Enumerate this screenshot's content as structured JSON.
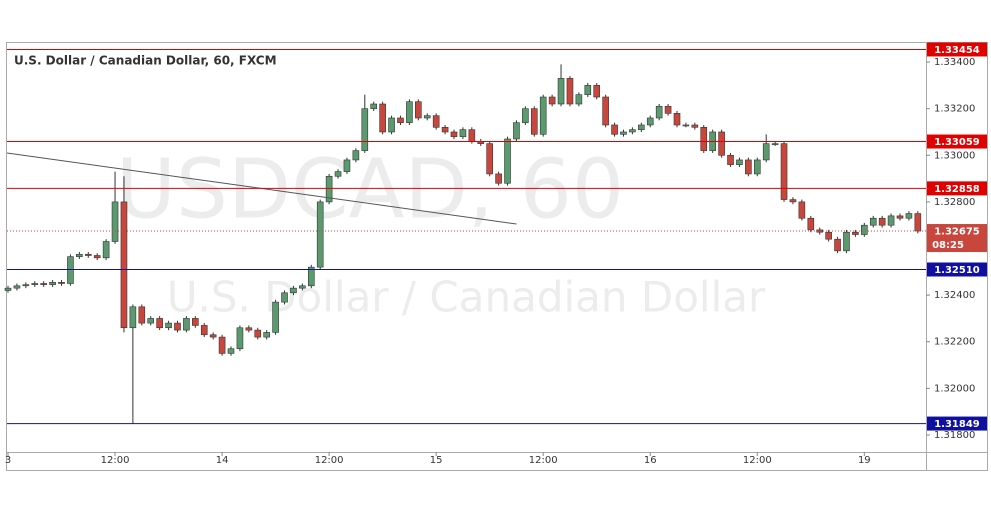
{
  "chart_data": {
    "type": "candlestick",
    "title": "U.S. Dollar / Canadian Dollar, 60, FXCM",
    "watermark": "USDCAD, 60",
    "watermark_subtitle": "U.S. Dollar / Canadian Dollar",
    "up_color": "#5b9a6f",
    "down_color": "#c9463d",
    "categories": [
      "3",
      null,
      null,
      null,
      null,
      null,
      null,
      null,
      null,
      null,
      null,
      null,
      "12:00",
      null,
      null,
      null,
      null,
      null,
      null,
      null,
      null,
      null,
      null,
      null,
      "14",
      null,
      null,
      null,
      null,
      null,
      null,
      null,
      null,
      null,
      null,
      null,
      "12:00",
      null,
      null,
      null,
      null,
      null,
      null,
      null,
      null,
      null,
      null,
      null,
      "15",
      null,
      null,
      null,
      null,
      null,
      null,
      null,
      null,
      null,
      null,
      null,
      "12:00",
      null,
      null,
      null,
      null,
      null,
      null,
      null,
      null,
      null,
      null,
      null,
      "16",
      null,
      null,
      null,
      null,
      null,
      null,
      null,
      null,
      null,
      null,
      null,
      "12:00",
      null,
      null,
      null,
      null,
      null,
      null,
      null,
      null,
      null,
      null,
      null,
      "19",
      null,
      null,
      null,
      null,
      null,
      null
    ],
    "open": [
      1.3242,
      1.3243,
      1.3244,
      1.32445,
      1.3245,
      1.32445,
      1.32455,
      1.3245,
      1.32565,
      1.32575,
      1.3257,
      1.3256,
      1.3263,
      1.328,
      1.3226,
      1.3235,
      1.3228,
      1.323,
      1.3226,
      1.3228,
      1.3225,
      1.323,
      1.3227,
      1.3223,
      1.3222,
      1.3215,
      1.3217,
      1.3226,
      1.3225,
      1.3222,
      1.3224,
      1.3237,
      1.3241,
      1.3243,
      1.3244,
      1.3252,
      1.328,
      1.3291,
      1.3293,
      1.3298,
      1.3302,
      1.332,
      1.3322,
      1.331,
      1.3316,
      1.3314,
      1.3323,
      1.3316,
      1.3317,
      1.3312,
      1.331,
      1.3308,
      1.3311,
      1.3306,
      1.3305,
      1.3292,
      1.3288,
      1.3307,
      1.3314,
      1.332,
      1.3309,
      1.3325,
      1.3322,
      1.3333,
      1.3322,
      1.3326,
      1.333,
      1.3325,
      1.3313,
      1.3309,
      1.331,
      1.3311,
      1.3313,
      1.3316,
      1.3321,
      1.3318,
      1.3313,
      1.3313,
      1.3312,
      1.3302,
      1.331,
      1.33,
      1.3296,
      1.3298,
      1.3292,
      1.3298,
      1.3305,
      1.3305,
      1.3281,
      1.328,
      1.3273,
      1.3268,
      1.3267,
      1.3264,
      1.3259,
      1.3267,
      1.3266,
      1.327,
      1.3273,
      1.327,
      1.3274,
      1.3273,
      1.3275
    ],
    "high": [
      1.3244,
      1.3245,
      1.32455,
      1.3246,
      1.3246,
      1.32465,
      1.32465,
      1.32575,
      1.32585,
      1.32585,
      1.3258,
      1.3264,
      1.3293,
      1.3291,
      1.3236,
      1.3236,
      1.3231,
      1.3231,
      1.3229,
      1.3229,
      1.3231,
      1.3231,
      1.3228,
      1.3224,
      1.3223,
      1.3218,
      1.3227,
      1.3227,
      1.3226,
      1.3225,
      1.3238,
      1.3242,
      1.3244,
      1.3245,
      1.3253,
      1.3281,
      1.3292,
      1.3294,
      1.3299,
      1.3303,
      1.3326,
      1.3323,
      1.3323,
      1.3317,
      1.3317,
      1.3324,
      1.3324,
      1.3318,
      1.3318,
      1.3313,
      1.3311,
      1.3312,
      1.3312,
      1.3307,
      1.3306,
      1.3293,
      1.3308,
      1.3315,
      1.3321,
      1.3321,
      1.3326,
      1.3326,
      1.3339,
      1.3334,
      1.3327,
      1.3331,
      1.3331,
      1.3326,
      1.3314,
      1.3311,
      1.3312,
      1.3314,
      1.3317,
      1.3322,
      1.3322,
      1.3319,
      1.3314,
      1.3314,
      1.3313,
      1.3311,
      1.3311,
      1.3301,
      1.3299,
      1.3299,
      1.3299,
      1.3309,
      1.3306,
      1.3306,
      1.3282,
      1.3281,
      1.3274,
      1.3269,
      1.3268,
      1.3265,
      1.3268,
      1.3268,
      1.3271,
      1.3274,
      1.3274,
      1.3275,
      1.3275,
      1.3276,
      1.3276
    ],
    "low": [
      1.3241,
      1.3242,
      1.3243,
      1.32435,
      1.32435,
      1.32435,
      1.3244,
      1.3244,
      1.32555,
      1.3256,
      1.3255,
      1.3255,
      1.3262,
      1.3224,
      1.3185,
      1.3227,
      1.3227,
      1.3225,
      1.3225,
      1.3224,
      1.3224,
      1.3226,
      1.3222,
      1.3221,
      1.3214,
      1.3214,
      1.3216,
      1.3224,
      1.3221,
      1.3221,
      1.3223,
      1.3236,
      1.324,
      1.3242,
      1.3243,
      1.3251,
      1.3279,
      1.329,
      1.3292,
      1.3297,
      1.3301,
      1.3319,
      1.3309,
      1.3309,
      1.3313,
      1.3313,
      1.3315,
      1.3315,
      1.3311,
      1.3309,
      1.3307,
      1.3307,
      1.3305,
      1.3304,
      1.3291,
      1.3287,
      1.3287,
      1.3306,
      1.3313,
      1.3308,
      1.3308,
      1.3321,
      1.3321,
      1.3321,
      1.3321,
      1.3325,
      1.3324,
      1.3312,
      1.3308,
      1.3308,
      1.3309,
      1.331,
      1.3312,
      1.3315,
      1.3317,
      1.3312,
      1.3312,
      1.3311,
      1.3301,
      1.3301,
      1.3299,
      1.3295,
      1.3295,
      1.3291,
      1.3291,
      1.3297,
      1.3304,
      1.328,
      1.3279,
      1.3272,
      1.3267,
      1.3266,
      1.3263,
      1.3258,
      1.3258,
      1.3265,
      1.3265,
      1.3269,
      1.3269,
      1.3269,
      1.3272,
      1.3272,
      1.32665
    ],
    "close": [
      1.3243,
      1.3244,
      1.32445,
      1.3245,
      1.32445,
      1.32455,
      1.3245,
      1.32565,
      1.32575,
      1.3257,
      1.3256,
      1.3263,
      1.328,
      1.3226,
      1.3235,
      1.3228,
      1.323,
      1.3226,
      1.3228,
      1.3225,
      1.323,
      1.3227,
      1.3223,
      1.3222,
      1.3215,
      1.3217,
      1.3226,
      1.3225,
      1.3222,
      1.3224,
      1.3237,
      1.3241,
      1.3243,
      1.3244,
      1.3252,
      1.328,
      1.3291,
      1.3293,
      1.3298,
      1.3302,
      1.332,
      1.3322,
      1.331,
      1.3316,
      1.3314,
      1.3323,
      1.3316,
      1.3317,
      1.3312,
      1.331,
      1.3308,
      1.3311,
      1.3306,
      1.3305,
      1.3292,
      1.3288,
      1.3307,
      1.3314,
      1.332,
      1.3309,
      1.3325,
      1.3322,
      1.3333,
      1.3322,
      1.3326,
      1.333,
      1.3325,
      1.3313,
      1.3309,
      1.331,
      1.3311,
      1.3313,
      1.3316,
      1.3321,
      1.3318,
      1.3313,
      1.3313,
      1.3312,
      1.3302,
      1.331,
      1.33,
      1.3296,
      1.3298,
      1.3292,
      1.3298,
      1.3305,
      1.3305,
      1.3281,
      1.328,
      1.3273,
      1.3268,
      1.3267,
      1.3264,
      1.3259,
      1.3267,
      1.3266,
      1.327,
      1.3273,
      1.327,
      1.3274,
      1.3273,
      1.3275,
      1.32675
    ],
    "ylim": [
      1.31727,
      1.33486
    ],
    "yticks": [
      {
        "value": 1.318,
        "label": "1.31800"
      },
      {
        "value": 1.32,
        "label": "1.32000"
      },
      {
        "value": 1.322,
        "label": "1.32200"
      },
      {
        "value": 1.324,
        "label": "1.32400"
      },
      {
        "value": 1.328,
        "label": "1.32800"
      },
      {
        "value": 1.33,
        "label": "1.33000"
      },
      {
        "value": 1.332,
        "label": "1.33200"
      },
      {
        "value": 1.334,
        "label": "1.33400"
      }
    ],
    "levels": [
      {
        "value": 1.33454,
        "label": "1.33454",
        "color": "#e00000"
      },
      {
        "value": 1.33059,
        "label": "1.33059",
        "color": "#e00000"
      },
      {
        "value": 1.32858,
        "label": "1.32858",
        "color": "#e00000"
      },
      {
        "value": 1.3251,
        "label": "1.32510",
        "color": "#1010a0"
      },
      {
        "value": 1.31849,
        "label": "1.31849",
        "color": "#1010a0"
      }
    ],
    "current": {
      "value": 1.32675,
      "label": "1.32675",
      "countdown": "08:25",
      "color": "#c9463d"
    },
    "trendline": {
      "x": [
        0,
        57
      ],
      "y": [
        1.3301,
        1.32705
      ],
      "color": "#555555"
    }
  }
}
